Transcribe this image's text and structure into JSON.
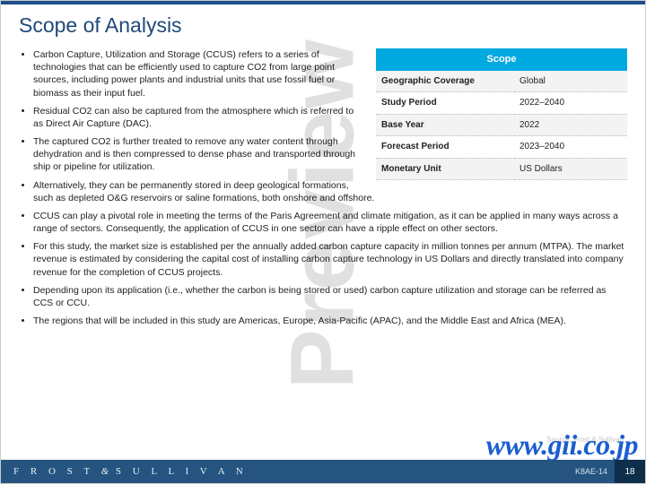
{
  "colors": {
    "title": "#20497a",
    "topbar": "#1d4e89",
    "tableHeader": "#00a9e0",
    "footer": "#24547f",
    "footerPage": "#0e2f4a",
    "urlmark": "#1a5fd0"
  },
  "title": "Scope of Analysis",
  "bullets": [
    "Carbon Capture, Utilization and Storage (CCUS) refers to a series of technologies that can be efficiently used to capture CO2 from large point sources, including power plants and industrial units that use fossil fuel or biomass as their input fuel.",
    "Residual CO2 can also be captured from the atmosphere which is referred to as Direct Air Capture (DAC).",
    "The captured CO2 is further treated to remove any water content through dehydration and is then compressed to dense phase and  transported through ship or pipeline for utilization.",
    "Alternatively, they can be permanently stored in deep geological formations, such as depleted O&G reservoirs or saline formations, both onshore and offshore.",
    "CCUS can play a pivotal role in meeting the terms of the Paris Agreement and climate mitigation, as it can be applied in many ways across a range of sectors. Consequently, the application of CCUS in one sector can have a ripple effect on other sectors.",
    "For this study, the market size is established per the annually added carbon capture capacity in million tonnes per annum (MTPA). The market revenue is estimated by considering the capital cost of installing carbon capture technology in US Dollars and directly translated into company revenue for the completion of CCUS projects.",
    "Depending upon its application (i.e., whether the carbon is being stored or used) carbon capture utilization and storage can be referred as CCS or CCU.",
    "The regions that will be included in this study are Americas, Europe, Asia-Pacific (APAC), and the Middle East and Africa (MEA)."
  ],
  "scope": {
    "header": "Scope",
    "rows": [
      {
        "label": "Geographic Coverage",
        "value": "Global"
      },
      {
        "label": "Study Period",
        "value": "2022–2040"
      },
      {
        "label": "Base Year",
        "value": "2022"
      },
      {
        "label": "Forecast Period",
        "value": "2023–2040"
      },
      {
        "label": "Monetary Unit",
        "value": "US Dollars"
      }
    ]
  },
  "watermark": "Preview",
  "sourceNote": "Source: Frost & Sullivan",
  "urlmark": "www.gii.co.jp",
  "footer": {
    "brand_left": "F R O S T",
    "brand_amp": "&",
    "brand_right": "S U L L I V A N",
    "code": "K8AE-14",
    "page": "18"
  }
}
